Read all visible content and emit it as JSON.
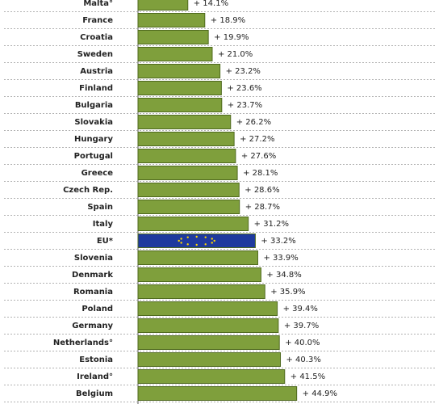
{
  "chart_data": {
    "type": "bar",
    "orientation": "horizontal",
    "categories": [
      "Malta°",
      "France",
      "Croatia",
      "Sweden",
      "Austria",
      "Finland",
      "Bulgaria",
      "Slovakia",
      "Hungary",
      "Portugal",
      "Greece",
      "Czech Rep.",
      "Spain",
      "Italy",
      "EU*",
      "Slovenia",
      "Denmark",
      "Romania",
      "Poland",
      "Germany",
      "Netherlands°",
      "Estonia",
      "Ireland°",
      "Belgium"
    ],
    "values": [
      14.1,
      18.9,
      19.9,
      21.0,
      23.2,
      23.6,
      23.7,
      26.2,
      27.2,
      27.6,
      28.1,
      28.6,
      28.7,
      31.2,
      33.2,
      33.9,
      34.8,
      35.9,
      39.4,
      39.7,
      40.0,
      40.3,
      41.5,
      44.9
    ],
    "value_labels": [
      "+ 14.1%",
      "+ 18.9%",
      "+ 19.9%",
      "+ 21.0%",
      "+ 23.2%",
      "+ 23.6%",
      "+ 23.7%",
      "+ 26.2%",
      "+ 27.2%",
      "+ 27.6%",
      "+ 28.1%",
      "+ 28.6%",
      "+ 28.7%",
      "+ 31.2%",
      "+ 33.2%",
      "+ 33.9%",
      "+ 34.8%",
      "+ 35.9%",
      "+ 39.4%",
      "+ 39.7%",
      "+ 40.0%",
      "+ 40.3%",
      "+ 41.5%",
      "+ 44.9%"
    ],
    "colors": [
      "#7f9f3c",
      "#7f9f3c",
      "#7f9f3c",
      "#7f9f3c",
      "#7f9f3c",
      "#7f9f3c",
      "#7f9f3c",
      "#7f9f3c",
      "#7f9f3c",
      "#7f9f3c",
      "#7f9f3c",
      "#7f9f3c",
      "#7f9f3c",
      "#7f9f3c",
      "#1f3a9e",
      "#7f9f3c",
      "#7f9f3c",
      "#7f9f3c",
      "#7f9f3c",
      "#7f9f3c",
      "#7f9f3c",
      "#7f9f3c",
      "#7f9f3c",
      "#7f9f3c"
    ]
  }
}
